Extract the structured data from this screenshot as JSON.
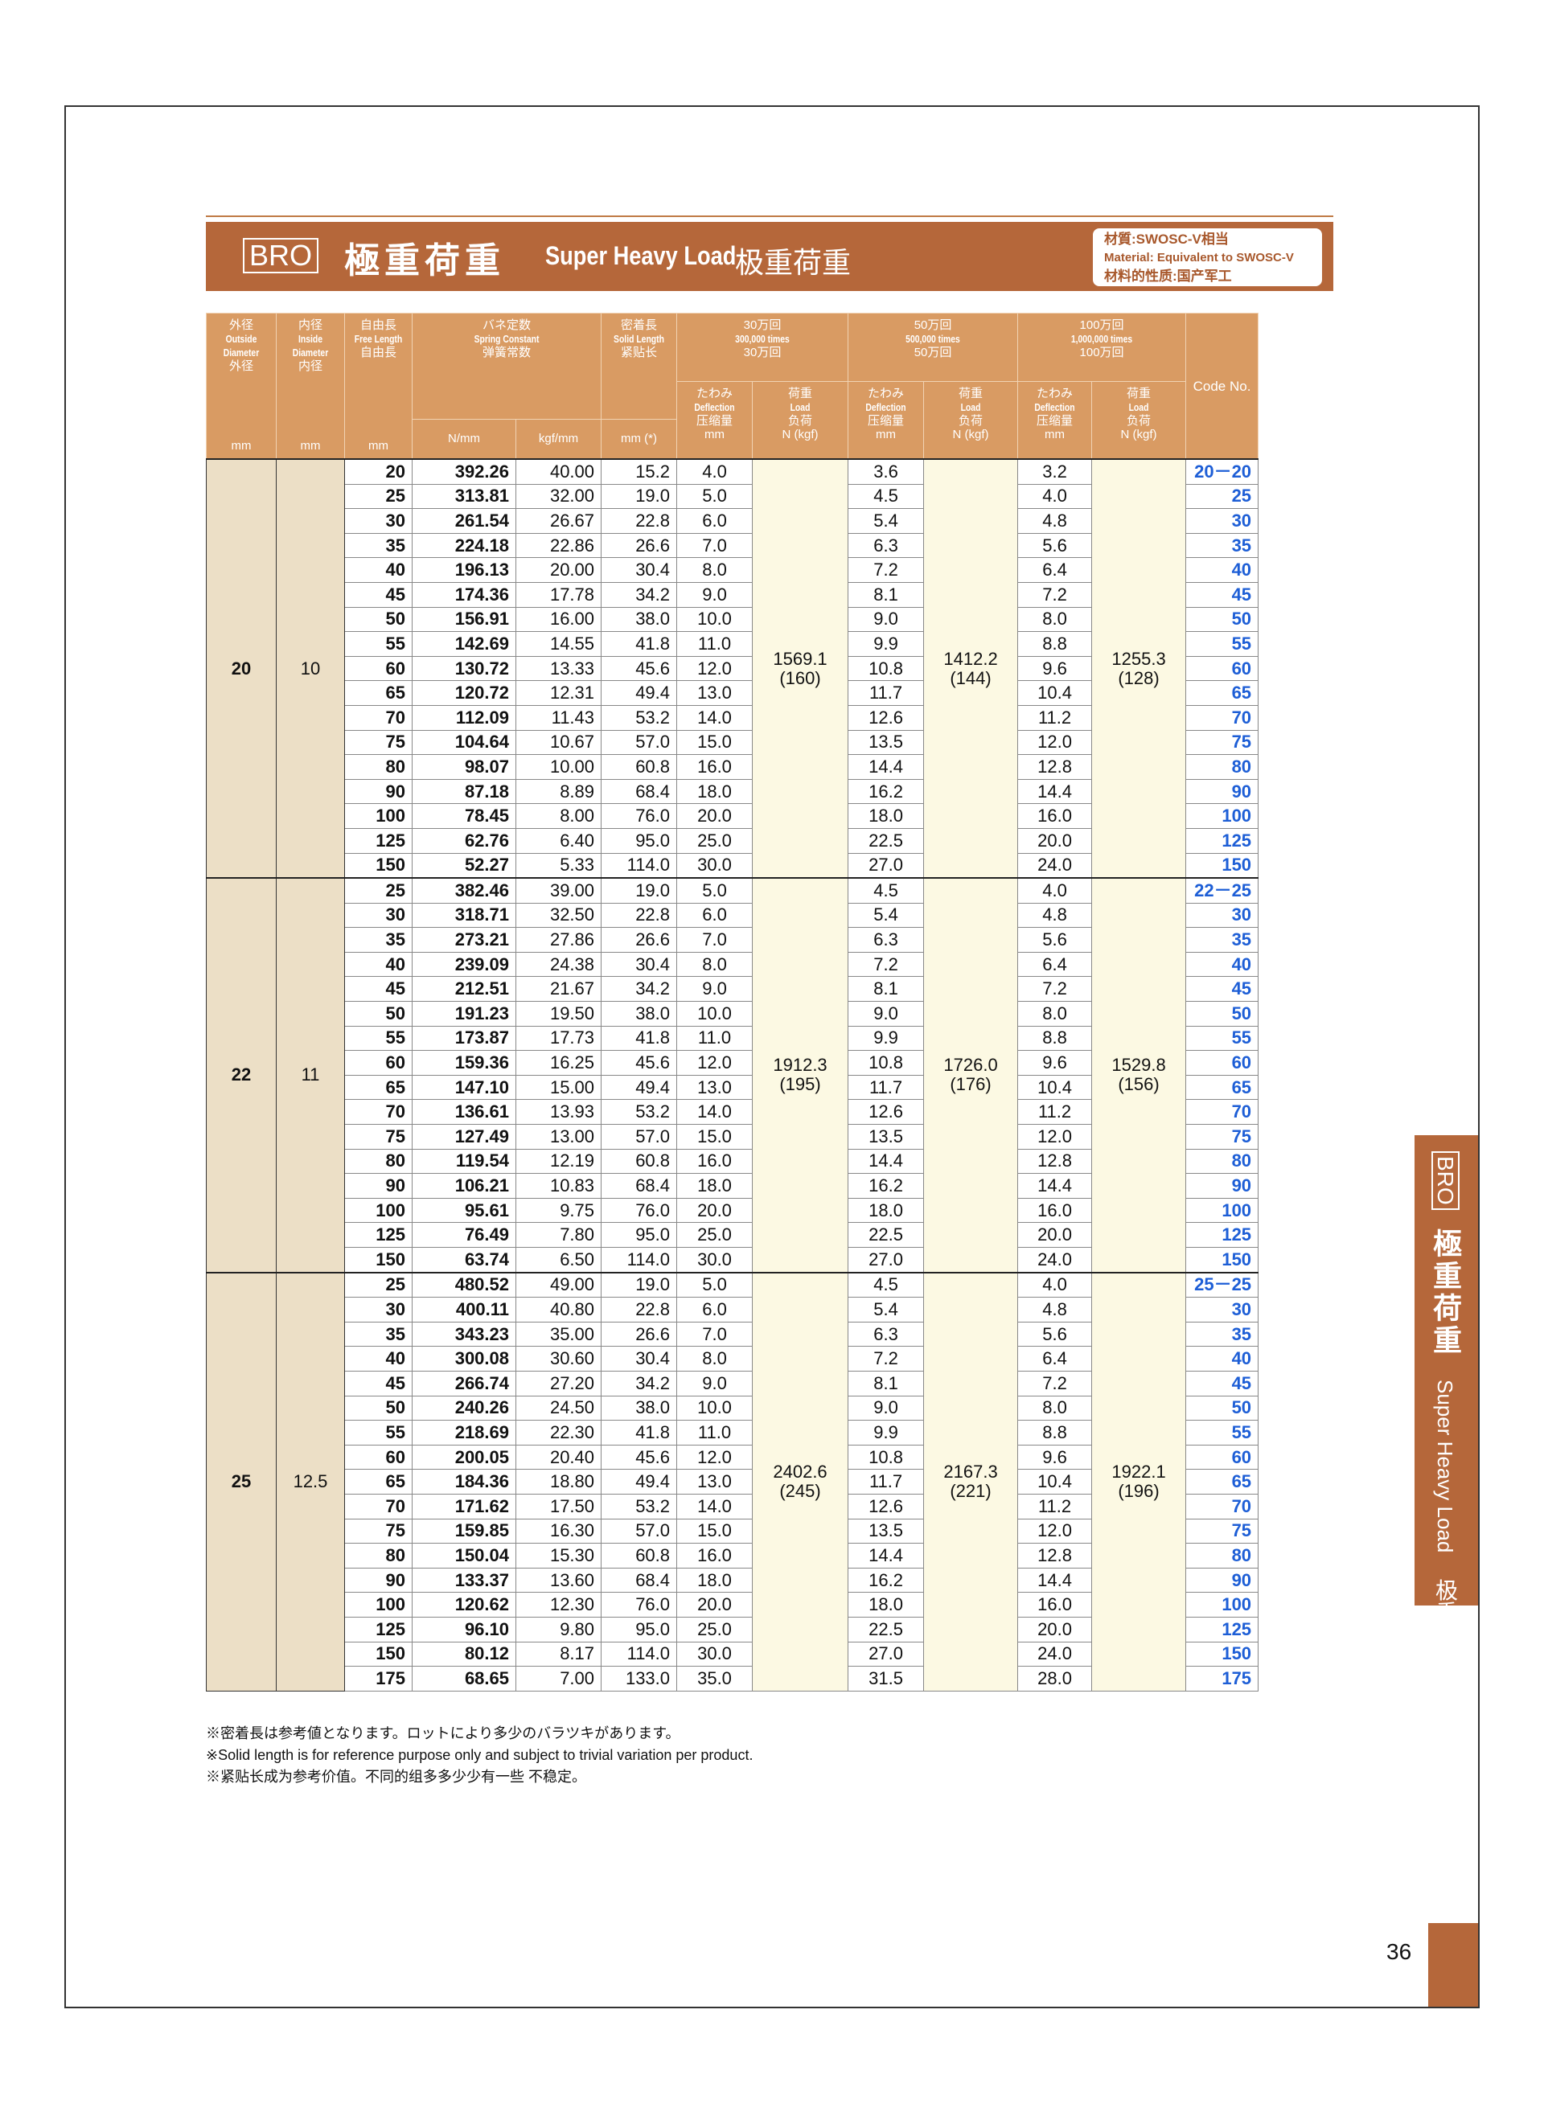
{
  "header": {
    "badge": "BRO",
    "title_ja": "極重荷重",
    "title_en": "Super Heavy Load",
    "title_cn": "极重荷重",
    "material": [
      "材質:SWOSC-V相当",
      "Material: Equivalent to SWOSC-V",
      "材料的性质:国产军工"
    ]
  },
  "table": {
    "head": {
      "outside": [
        "外径",
        "Outside Diameter",
        "外径",
        "mm"
      ],
      "inside": [
        "内径",
        "Inside Diameter",
        "内径",
        "mm"
      ],
      "free": [
        "自由長",
        "Free Length",
        "自由長",
        "mm"
      ],
      "spring": [
        "バネ定数",
        "Spring Constant",
        "弹簧常数"
      ],
      "spring_units": [
        "N/mm",
        "kgf/mm"
      ],
      "solid": [
        "密着長",
        "Solid Length",
        "紧贴长"
      ],
      "solid_unit": "mm (*)",
      "lives": [
        [
          "30万回",
          "300,000 times",
          "30万回"
        ],
        [
          "50万回",
          "500,000 times",
          "50万回"
        ],
        [
          "100万回",
          "1,000,000 times",
          "100万回"
        ]
      ],
      "deflection": [
        "たわみ",
        "Deflection",
        "压缩量",
        "mm"
      ],
      "load": [
        "荷重",
        "Load",
        "负荷",
        "N (kgf)"
      ],
      "code": "Code No."
    },
    "groups": [
      {
        "outside": "20",
        "inside": "10",
        "loads": [
          [
            "1569.1",
            "(160)"
          ],
          [
            "1412.2",
            "(144)"
          ],
          [
            "1255.3",
            "(128)"
          ]
        ],
        "rows": [
          [
            "20",
            "392.26",
            "40.00",
            "15.2",
            "4.0",
            "3.6",
            "3.2",
            "20－20"
          ],
          [
            "25",
            "313.81",
            "32.00",
            "19.0",
            "5.0",
            "4.5",
            "4.0",
            "25"
          ],
          [
            "30",
            "261.54",
            "26.67",
            "22.8",
            "6.0",
            "5.4",
            "4.8",
            "30"
          ],
          [
            "35",
            "224.18",
            "22.86",
            "26.6",
            "7.0",
            "6.3",
            "5.6",
            "35"
          ],
          [
            "40",
            "196.13",
            "20.00",
            "30.4",
            "8.0",
            "7.2",
            "6.4",
            "40"
          ],
          [
            "45",
            "174.36",
            "17.78",
            "34.2",
            "9.0",
            "8.1",
            "7.2",
            "45"
          ],
          [
            "50",
            "156.91",
            "16.00",
            "38.0",
            "10.0",
            "9.0",
            "8.0",
            "50"
          ],
          [
            "55",
            "142.69",
            "14.55",
            "41.8",
            "11.0",
            "9.9",
            "8.8",
            "55"
          ],
          [
            "60",
            "130.72",
            "13.33",
            "45.6",
            "12.0",
            "10.8",
            "9.6",
            "60"
          ],
          [
            "65",
            "120.72",
            "12.31",
            "49.4",
            "13.0",
            "11.7",
            "10.4",
            "65"
          ],
          [
            "70",
            "112.09",
            "11.43",
            "53.2",
            "14.0",
            "12.6",
            "11.2",
            "70"
          ],
          [
            "75",
            "104.64",
            "10.67",
            "57.0",
            "15.0",
            "13.5",
            "12.0",
            "75"
          ],
          [
            "80",
            "98.07",
            "10.00",
            "60.8",
            "16.0",
            "14.4",
            "12.8",
            "80"
          ],
          [
            "90",
            "87.18",
            "8.89",
            "68.4",
            "18.0",
            "16.2",
            "14.4",
            "90"
          ],
          [
            "100",
            "78.45",
            "8.00",
            "76.0",
            "20.0",
            "18.0",
            "16.0",
            "100"
          ],
          [
            "125",
            "62.76",
            "6.40",
            "95.0",
            "25.0",
            "22.5",
            "20.0",
            "125"
          ],
          [
            "150",
            "52.27",
            "5.33",
            "114.0",
            "30.0",
            "27.0",
            "24.0",
            "150"
          ]
        ]
      },
      {
        "outside": "22",
        "inside": "11",
        "loads": [
          [
            "1912.3",
            "(195)"
          ],
          [
            "1726.0",
            "(176)"
          ],
          [
            "1529.8",
            "(156)"
          ]
        ],
        "rows": [
          [
            "25",
            "382.46",
            "39.00",
            "19.0",
            "5.0",
            "4.5",
            "4.0",
            "22－25"
          ],
          [
            "30",
            "318.71",
            "32.50",
            "22.8",
            "6.0",
            "5.4",
            "4.8",
            "30"
          ],
          [
            "35",
            "273.21",
            "27.86",
            "26.6",
            "7.0",
            "6.3",
            "5.6",
            "35"
          ],
          [
            "40",
            "239.09",
            "24.38",
            "30.4",
            "8.0",
            "7.2",
            "6.4",
            "40"
          ],
          [
            "45",
            "212.51",
            "21.67",
            "34.2",
            "9.0",
            "8.1",
            "7.2",
            "45"
          ],
          [
            "50",
            "191.23",
            "19.50",
            "38.0",
            "10.0",
            "9.0",
            "8.0",
            "50"
          ],
          [
            "55",
            "173.87",
            "17.73",
            "41.8",
            "11.0",
            "9.9",
            "8.8",
            "55"
          ],
          [
            "60",
            "159.36",
            "16.25",
            "45.6",
            "12.0",
            "10.8",
            "9.6",
            "60"
          ],
          [
            "65",
            "147.10",
            "15.00",
            "49.4",
            "13.0",
            "11.7",
            "10.4",
            "65"
          ],
          [
            "70",
            "136.61",
            "13.93",
            "53.2",
            "14.0",
            "12.6",
            "11.2",
            "70"
          ],
          [
            "75",
            "127.49",
            "13.00",
            "57.0",
            "15.0",
            "13.5",
            "12.0",
            "75"
          ],
          [
            "80",
            "119.54",
            "12.19",
            "60.8",
            "16.0",
            "14.4",
            "12.8",
            "80"
          ],
          [
            "90",
            "106.21",
            "10.83",
            "68.4",
            "18.0",
            "16.2",
            "14.4",
            "90"
          ],
          [
            "100",
            "95.61",
            "9.75",
            "76.0",
            "20.0",
            "18.0",
            "16.0",
            "100"
          ],
          [
            "125",
            "76.49",
            "7.80",
            "95.0",
            "25.0",
            "22.5",
            "20.0",
            "125"
          ],
          [
            "150",
            "63.74",
            "6.50",
            "114.0",
            "30.0",
            "27.0",
            "24.0",
            "150"
          ]
        ]
      },
      {
        "outside": "25",
        "inside": "12.5",
        "loads": [
          [
            "2402.6",
            "(245)"
          ],
          [
            "2167.3",
            "(221)"
          ],
          [
            "1922.1",
            "(196)"
          ]
        ],
        "rows": [
          [
            "25",
            "480.52",
            "49.00",
            "19.0",
            "5.0",
            "4.5",
            "4.0",
            "25－25"
          ],
          [
            "30",
            "400.11",
            "40.80",
            "22.8",
            "6.0",
            "5.4",
            "4.8",
            "30"
          ],
          [
            "35",
            "343.23",
            "35.00",
            "26.6",
            "7.0",
            "6.3",
            "5.6",
            "35"
          ],
          [
            "40",
            "300.08",
            "30.60",
            "30.4",
            "8.0",
            "7.2",
            "6.4",
            "40"
          ],
          [
            "45",
            "266.74",
            "27.20",
            "34.2",
            "9.0",
            "8.1",
            "7.2",
            "45"
          ],
          [
            "50",
            "240.26",
            "24.50",
            "38.0",
            "10.0",
            "9.0",
            "8.0",
            "50"
          ],
          [
            "55",
            "218.69",
            "22.30",
            "41.8",
            "11.0",
            "9.9",
            "8.8",
            "55"
          ],
          [
            "60",
            "200.05",
            "20.40",
            "45.6",
            "12.0",
            "10.8",
            "9.6",
            "60"
          ],
          [
            "65",
            "184.36",
            "18.80",
            "49.4",
            "13.0",
            "11.7",
            "10.4",
            "65"
          ],
          [
            "70",
            "171.62",
            "17.50",
            "53.2",
            "14.0",
            "12.6",
            "11.2",
            "70"
          ],
          [
            "75",
            "159.85",
            "16.30",
            "57.0",
            "15.0",
            "13.5",
            "12.0",
            "75"
          ],
          [
            "80",
            "150.04",
            "15.30",
            "60.8",
            "16.0",
            "14.4",
            "12.8",
            "80"
          ],
          [
            "90",
            "133.37",
            "13.60",
            "68.4",
            "18.0",
            "16.2",
            "14.4",
            "90"
          ],
          [
            "100",
            "120.62",
            "12.30",
            "76.0",
            "20.0",
            "18.0",
            "16.0",
            "100"
          ],
          [
            "125",
            "96.10",
            "9.80",
            "95.0",
            "25.0",
            "22.5",
            "20.0",
            "125"
          ],
          [
            "150",
            "80.12",
            "8.17",
            "114.0",
            "30.0",
            "27.0",
            "24.0",
            "150"
          ],
          [
            "175",
            "68.65",
            "7.00",
            "133.0",
            "35.0",
            "31.5",
            "28.0",
            "175"
          ]
        ]
      }
    ]
  },
  "notes": [
    "※密着長は参考値となります。ロットにより多少のバラツキがあります。",
    "※Solid length is for reference purpose only and subject to trivial variation per product.",
    "※紧贴长成为参考价值。不同的组多多少少有一些 不稳定。"
  ],
  "side_tab": {
    "badge": "BRO",
    "title_ja": "極重荷重",
    "title_en": "Super Heavy Load",
    "title_cn": "极重荷重"
  },
  "page_number": "36"
}
